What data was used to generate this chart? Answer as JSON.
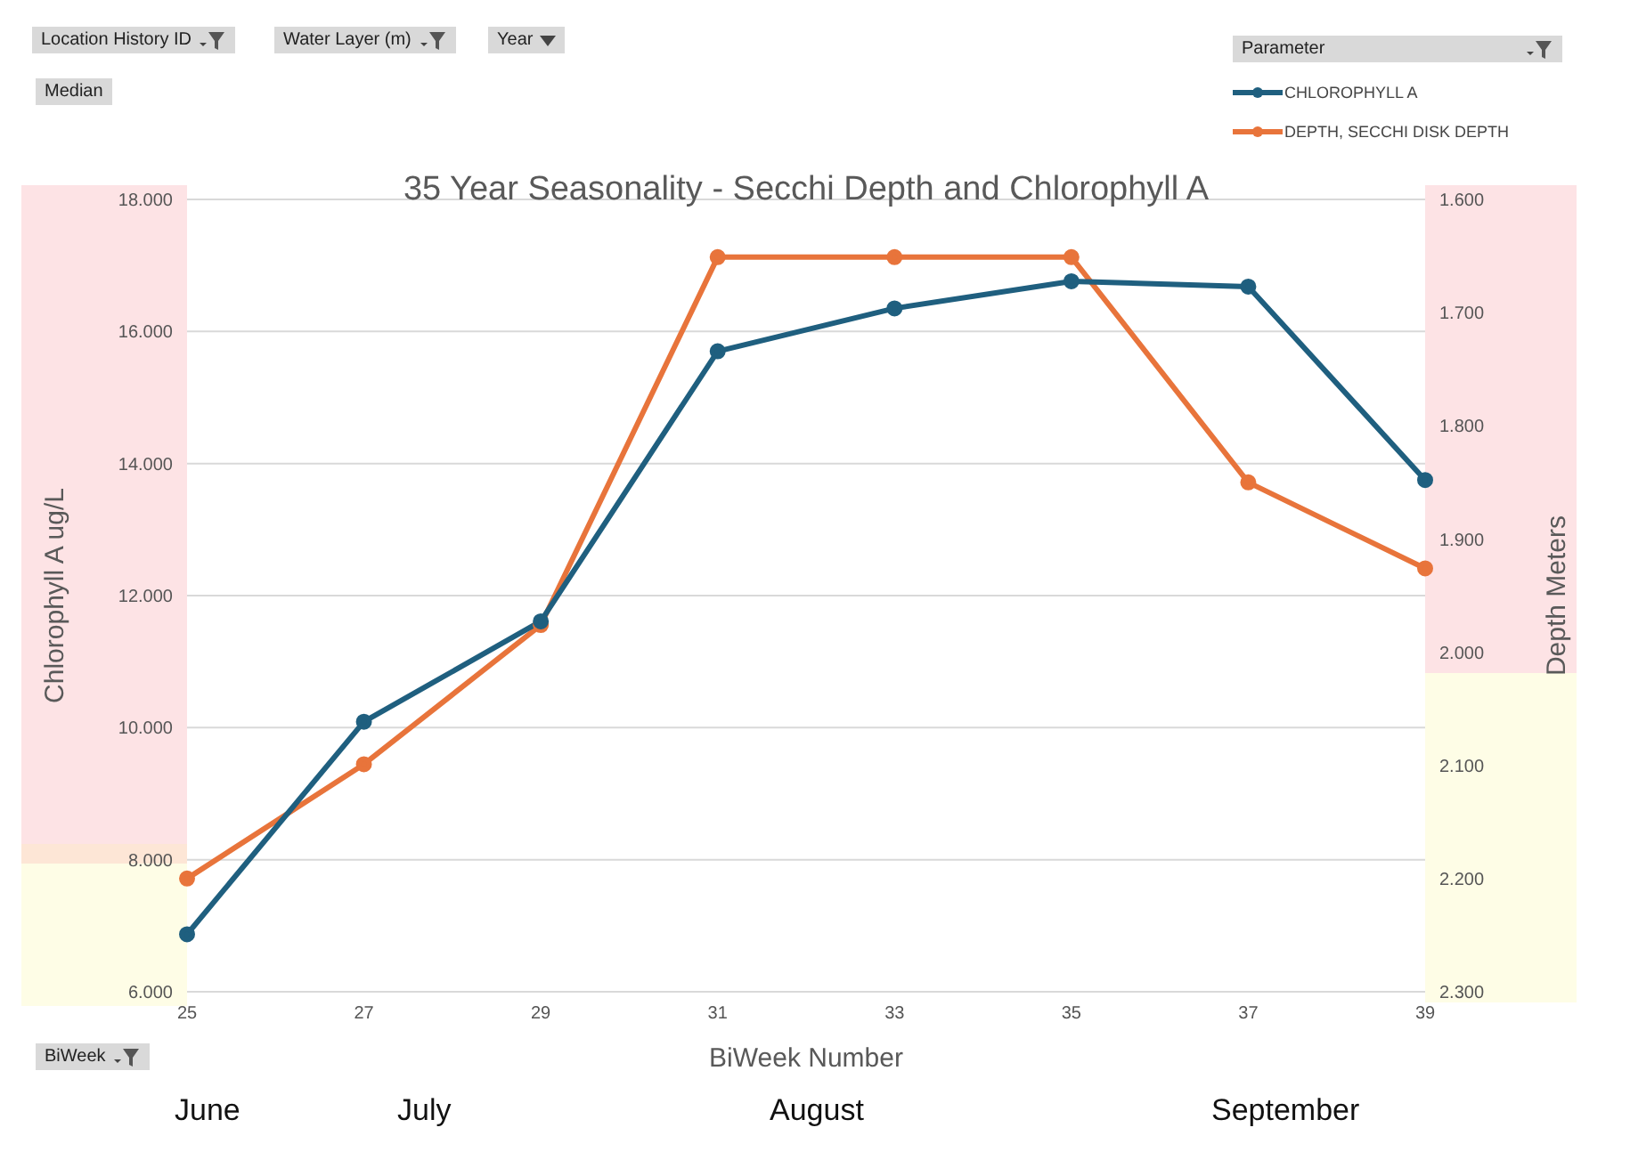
{
  "chart_data": {
    "type": "line",
    "title": "35 Year Seasonality - Secchi Depth and Chlorophyll A",
    "xlabel": "BiWeek Number",
    "ylabel": "Chlorophyll A ug/L",
    "y2label": "Depth Meters",
    "legend_title": "Parameter",
    "categories": [
      "25",
      "27",
      "29",
      "31",
      "33",
      "35",
      "37",
      "39"
    ],
    "series": [
      {
        "name": "CHLOROPHYLL A",
        "color": "#1f5f7f",
        "values": [
          6.87,
          10.09,
          11.61,
          15.7,
          16.35,
          16.76,
          16.68,
          13.75
        ]
      },
      {
        "name": "DEPTH, SECCHI DISK DEPTH",
        "color": "#e8743b",
        "axis": "y2",
        "values": [
          2.2,
          2.099,
          1.976,
          1.651,
          1.651,
          1.651,
          1.85,
          1.926
        ]
      }
    ],
    "ylim": [
      6,
      18
    ],
    "yticks": [
      {
        "value": 6,
        "label": "6.000"
      },
      {
        "value": 8,
        "label": "8.000"
      },
      {
        "value": 10,
        "label": "10.000"
      },
      {
        "value": 12,
        "label": "12.000"
      },
      {
        "value": 14,
        "label": "14.000"
      },
      {
        "value": 16,
        "label": "16.000"
      },
      {
        "value": 18,
        "label": "18.000"
      }
    ],
    "y2lim": [
      2.3,
      1.6
    ],
    "y2ticks": [
      {
        "value": 1.6,
        "label": "1.600"
      },
      {
        "value": 1.7,
        "label": "1.700"
      },
      {
        "value": 1.8,
        "label": "1.800"
      },
      {
        "value": 1.9,
        "label": "1.900"
      },
      {
        "value": 2.0,
        "label": "2.000"
      },
      {
        "value": 2.1,
        "label": "2.100"
      },
      {
        "value": 2.2,
        "label": "2.200"
      },
      {
        "value": 2.3,
        "label": "2.300"
      }
    ],
    "annotations": [
      "Location History ID",
      "Water Layer (m)",
      "Year",
      "Median",
      "BiWeek",
      "June",
      "July",
      "August",
      "September"
    ],
    "grid": "y",
    "legend": "top right",
    "marker": "circle",
    "line_style": "solid"
  }
}
